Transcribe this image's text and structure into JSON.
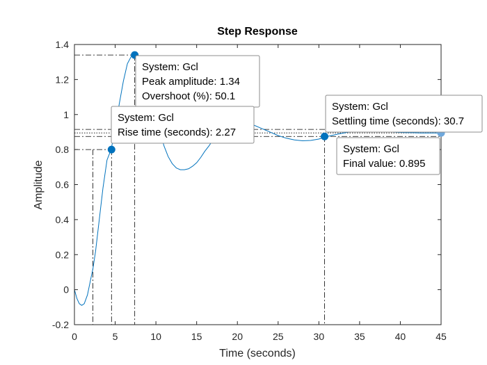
{
  "chart_data": {
    "type": "line",
    "title": "Step Response",
    "xlabel": "Time (seconds)",
    "ylabel": "Amplitude",
    "xlim": [
      0,
      45
    ],
    "ylim": [
      -0.2,
      1.4
    ],
    "xticks": [
      "0",
      "5",
      "10",
      "15",
      "20",
      "25",
      "30",
      "35",
      "40",
      "45"
    ],
    "yticks": [
      "-0.2",
      "0",
      "0.2",
      "0.4",
      "0.6",
      "0.8",
      "1",
      "1.2",
      "1.4"
    ],
    "grid": false,
    "colors": {
      "line": "#0072BD",
      "marker": "#0072BD",
      "final_marker": "#6fa8dc",
      "guide": "#000000"
    },
    "series": [
      {
        "x": [
          0,
          0.3,
          0.6,
          0.9,
          1.2,
          1.6,
          2.0,
          2.27,
          2.6,
          3.0,
          3.5,
          4.0,
          4.5,
          5.0,
          5.5,
          6.0,
          6.5,
          7.0,
          7.4,
          7.8,
          8.2,
          8.6,
          9.0,
          9.5,
          10.0,
          10.5,
          11.0,
          11.5,
          12.0,
          12.5,
          13.0,
          13.5,
          14.0,
          14.5,
          15.0,
          15.5,
          16.0,
          16.5,
          17.0,
          17.5,
          18.0,
          18.5,
          19.0,
          19.5,
          20.0,
          21.0,
          22.0,
          23.0,
          24.0,
          25.0,
          26.0,
          27.0,
          28.0,
          29.0,
          30.0,
          30.7,
          31.5,
          32.5,
          33.5,
          34.5,
          35.5,
          36.5,
          37.5,
          38.5,
          39.5,
          40.5,
          41.5,
          42.5,
          43.5,
          44.5,
          45.0
        ],
        "y": [
          0.0,
          -0.05,
          -0.08,
          -0.09,
          -0.08,
          -0.03,
          0.06,
          0.12,
          0.22,
          0.38,
          0.58,
          0.74,
          0.8,
          0.92,
          1.06,
          1.19,
          1.29,
          1.335,
          1.34,
          1.325,
          1.29,
          1.24,
          1.17,
          1.08,
          0.99,
          0.9,
          0.82,
          0.76,
          0.72,
          0.695,
          0.685,
          0.685,
          0.69,
          0.705,
          0.725,
          0.755,
          0.79,
          0.82,
          0.855,
          0.885,
          0.91,
          0.93,
          0.945,
          0.955,
          0.96,
          0.955,
          0.94,
          0.92,
          0.9,
          0.88,
          0.865,
          0.855,
          0.85,
          0.852,
          0.86,
          0.87,
          0.88,
          0.89,
          0.898,
          0.903,
          0.905,
          0.905,
          0.903,
          0.901,
          0.899,
          0.897,
          0.896,
          0.895,
          0.895,
          0.895,
          0.895
        ]
      }
    ],
    "markers": [
      {
        "name": "peak",
        "x": 7.4,
        "y": 1.34
      },
      {
        "name": "rise",
        "x": 4.55,
        "y": 0.8
      },
      {
        "name": "settling",
        "x": 30.7,
        "y": 0.875
      },
      {
        "name": "final",
        "x": 45,
        "y": 0.895
      }
    ],
    "guides": {
      "rise_start_x": 2.27,
      "rise_level_y": 0.8,
      "peak_level_y": 1.34,
      "settling_band_upper": 0.915,
      "settling_band_lower": 0.875,
      "final_value_y": 0.895
    },
    "datatips": [
      {
        "name": "peak",
        "lines": [
          "System: Gcl",
          "Peak amplitude: 1.34",
          "Overshoot (%): 50.1"
        ]
      },
      {
        "name": "rise",
        "lines": [
          "System: Gcl",
          "Rise time (seconds): 2.27"
        ]
      },
      {
        "name": "settling",
        "lines": [
          "System: Gcl",
          "Settling time (seconds): 30.7"
        ]
      },
      {
        "name": "final",
        "lines": [
          "System: Gcl",
          "Final value: 0.895"
        ]
      }
    ]
  }
}
